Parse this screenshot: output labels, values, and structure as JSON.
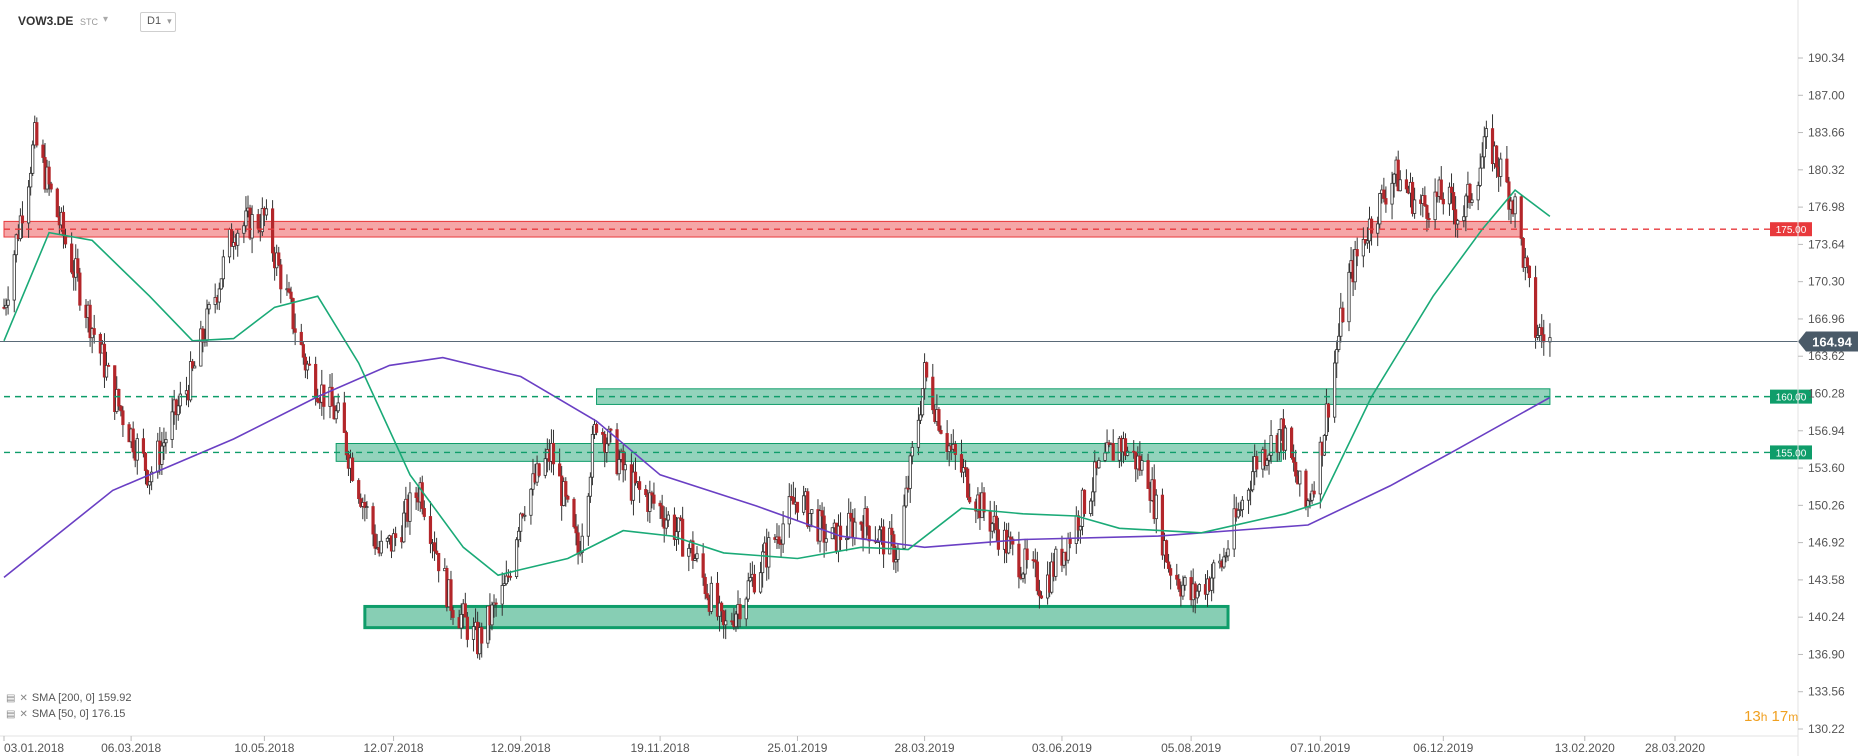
{
  "header": {
    "symbol": "VOW3.DE",
    "market": "STC",
    "timeframe": "D1"
  },
  "indicators": [
    {
      "label": "SMA [200, 0]",
      "value": "159.92",
      "color": "#6a3fc4"
    },
    {
      "label": "SMA [50, 0]",
      "value": "176.15",
      "color": "#1aaa77"
    }
  ],
  "timer": {
    "hours": "13",
    "h": "h",
    "minutes": "17",
    "m": "m"
  },
  "chart_data": {
    "type": "candlestick",
    "y_ticks": [
      "190.34",
      "187.00",
      "183.66",
      "180.32",
      "176.98",
      "173.64",
      "170.30",
      "166.96",
      "163.62",
      "160.28",
      "156.94",
      "153.60",
      "150.26",
      "146.92",
      "143.58",
      "140.24",
      "136.90",
      "133.56",
      "130.22"
    ],
    "ylim": [
      130.22,
      191.5
    ],
    "x_ticks": [
      "03.01.2018",
      "06.03.2018",
      "10.05.2018",
      "12.07.2018",
      "12.09.2018",
      "19.11.2018",
      "25.01.2019",
      "28.03.2019",
      "03.06.2019",
      "05.08.2019",
      "07.10.2019",
      "06.12.2019",
      "13.02.2020",
      "28.03.2020"
    ],
    "last_price": "164.94",
    "levels": [
      {
        "value": 175.0,
        "label": "175.00",
        "color": "#e8393c"
      },
      {
        "value": 160.0,
        "label": "160.00",
        "color": "#0f9d6a"
      },
      {
        "value": 155.0,
        "label": "155.00",
        "color": "#0f9d6a"
      }
    ],
    "zones": [
      {
        "from_date": "03.01.2018",
        "to_date": "13.01.2020",
        "low": 174.3,
        "high": 175.7,
        "color": "#e8393c"
      },
      {
        "from_date": "19.10.2018",
        "to_date": "27.01.2020",
        "low": 159.3,
        "high": 160.7,
        "color": "#0f9d6a"
      },
      {
        "from_date": "14.06.2018",
        "to_date": "18.09.2019",
        "low": 154.2,
        "high": 155.8,
        "color": "#0f9d6a"
      },
      {
        "from_date": "28.06.2018",
        "to_date": "23.08.2019",
        "low": 139.3,
        "high": 141.2,
        "color": "#0f9d6a"
      }
    ],
    "close_path": [
      [
        "03.01.2018",
        168
      ],
      [
        "18.01.2018",
        183
      ],
      [
        "05.02.2018",
        172
      ],
      [
        "26.02.2018",
        160
      ],
      [
        "15.03.2018",
        153
      ],
      [
        "05.04.2018",
        162
      ],
      [
        "25.04.2018",
        175
      ],
      [
        "10.05.2018",
        176
      ],
      [
        "30.05.2018",
        163
      ],
      [
        "15.06.2018",
        158
      ],
      [
        "05.07.2018",
        146
      ],
      [
        "12.07.2018",
        147
      ],
      [
        "25.07.2018",
        152
      ],
      [
        "08.08.2018",
        142
      ],
      [
        "22.08.2018",
        138
      ],
      [
        "05.09.2018",
        143
      ],
      [
        "12.09.2018",
        150
      ],
      [
        "27.09.2018",
        155
      ],
      [
        "10.10.2018",
        146
      ],
      [
        "19.10.2018",
        158
      ],
      [
        "05.11.2018",
        152
      ],
      [
        "19.11.2018",
        150
      ],
      [
        "05.12.2018",
        146
      ],
      [
        "20.12.2018",
        139
      ],
      [
        "10.01.2019",
        146
      ],
      [
        "25.01.2019",
        151
      ],
      [
        "10.02.2019",
        147
      ],
      [
        "25.02.2019",
        149
      ],
      [
        "15.03.2019",
        146
      ],
      [
        "28.03.2019",
        162
      ],
      [
        "10.04.2019",
        155
      ],
      [
        "25.04.2019",
        150
      ],
      [
        "10.05.2019",
        146
      ],
      [
        "25.05.2019",
        143
      ],
      [
        "03.06.2019",
        146
      ],
      [
        "20.06.2019",
        153
      ],
      [
        "01.07.2019",
        156
      ],
      [
        "15.07.2019",
        153
      ],
      [
        "25.07.2019",
        145
      ],
      [
        "05.08.2019",
        142
      ],
      [
        "20.08.2019",
        145
      ],
      [
        "05.09.2019",
        154
      ],
      [
        "18.09.2019",
        157
      ],
      [
        "30.09.2019",
        150
      ],
      [
        "07.10.2019",
        155
      ],
      [
        "20.10.2019",
        170
      ],
      [
        "30.10.2019",
        175
      ],
      [
        "12.11.2019",
        180
      ],
      [
        "25.11.2019",
        177
      ],
      [
        "06.12.2019",
        178
      ],
      [
        "15.12.2019",
        176
      ],
      [
        "28.12.2019",
        183
      ],
      [
        "10.01.2020",
        177
      ],
      [
        "20.01.2020",
        166
      ],
      [
        "27.01.2020",
        164.94
      ]
    ],
    "sma_200": [
      [
        "03.01.2018",
        143.8
      ],
      [
        "25.02.2018",
        151.6
      ],
      [
        "25.04.2018",
        156.2
      ],
      [
        "05.06.2018",
        160.0
      ],
      [
        "10.07.2018",
        162.8
      ],
      [
        "05.08.2018",
        163.5
      ],
      [
        "12.09.2018",
        161.8
      ],
      [
        "19.10.2018",
        157.8
      ],
      [
        "19.11.2018",
        153.0
      ],
      [
        "05.01.2019",
        150.2
      ],
      [
        "15.02.2019",
        147.5
      ],
      [
        "28.03.2019",
        146.5
      ],
      [
        "15.05.2019",
        147.2
      ],
      [
        "20.07.2019",
        147.5
      ],
      [
        "01.10.2019",
        148.5
      ],
      [
        "10.11.2019",
        152.0
      ],
      [
        "10.12.2019",
        155.0
      ],
      [
        "27.01.2020",
        159.92
      ]
    ],
    "sma_50": [
      [
        "03.01.2018",
        165.0
      ],
      [
        "25.01.2018",
        174.7
      ],
      [
        "15.02.2018",
        174.0
      ],
      [
        "15.03.2018",
        169.0
      ],
      [
        "05.04.2018",
        165.0
      ],
      [
        "25.04.2018",
        165.2
      ],
      [
        "15.05.2018",
        168.0
      ],
      [
        "05.06.2018",
        169.0
      ],
      [
        "25.06.2018",
        163.0
      ],
      [
        "20.07.2018",
        153.0
      ],
      [
        "15.08.2018",
        146.5
      ],
      [
        "01.09.2018",
        144.0
      ],
      [
        "12.09.2018",
        144.5
      ],
      [
        "05.10.2018",
        145.5
      ],
      [
        "01.11.2018",
        148.0
      ],
      [
        "25.11.2018",
        147.5
      ],
      [
        "20.12.2018",
        146.0
      ],
      [
        "25.01.2019",
        145.5
      ],
      [
        "25.02.2019",
        146.5
      ],
      [
        "20.03.2019",
        146.3
      ],
      [
        "15.04.2019",
        150.0
      ],
      [
        "15.05.2019",
        149.5
      ],
      [
        "10.06.2019",
        149.3
      ],
      [
        "01.07.2019",
        148.2
      ],
      [
        "10.08.2019",
        147.8
      ],
      [
        "20.09.2019",
        149.5
      ],
      [
        "07.10.2019",
        150.5
      ],
      [
        "01.11.2019",
        160.0
      ],
      [
        "01.12.2019",
        169.0
      ],
      [
        "25.12.2019",
        175.0
      ],
      [
        "10.01.2020",
        178.5
      ],
      [
        "27.01.2020",
        176.15
      ]
    ]
  }
}
